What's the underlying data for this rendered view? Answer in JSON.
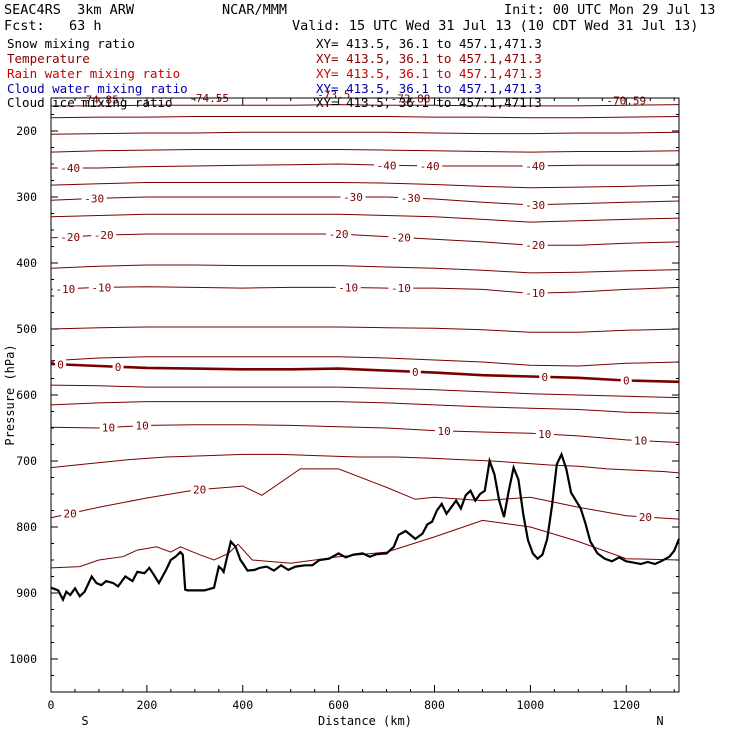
{
  "header": {
    "model": "SEAC4RS  3km ARW",
    "org": "NCAR/MMM",
    "init": "Init: 00 UTC Mon 29 Jul 13",
    "fcst": "Fcst:   63 h",
    "valid": "Valid: 15 UTC Wed 31 Jul 13 (10 CDT Wed 31 Jul 13)"
  },
  "legend": [
    {
      "label": "Snow mixing ratio",
      "range": "XY= 413.5, 36.1 to 457.1,471.3",
      "label_color": "#000000",
      "range_color": "#000000"
    },
    {
      "label": "Temperature",
      "range": "XY= 413.5, 36.1 to 457.1,471.3",
      "label_color": "#8b0000",
      "range_color": "#8b0000"
    },
    {
      "label": "Rain water mixing ratio",
      "range": "XY= 413.5, 36.1 to 457.1,471.3",
      "label_color": "#cc0000",
      "range_color": "#cc0000"
    },
    {
      "label": "Cloud water mixing ratio",
      "range": "XY= 413.5, 36.1 to 457.1,471.3",
      "label_color": "#0000aa",
      "range_color": "#0000aa"
    },
    {
      "label": "Cloud ice mixing ratio",
      "range": "XY= 413.5, 36.1 to 457.1,471.3",
      "label_color": "#000000",
      "range_color": "#000000"
    }
  ],
  "chart_data": {
    "type": "line",
    "title": "",
    "xlabel": "Distance (km)",
    "ylabel": "Pressure (hPa)",
    "xlim": [
      0,
      1310
    ],
    "ylim": [
      1050,
      150
    ],
    "x_ticks": [
      0,
      200,
      400,
      600,
      800,
      1000,
      1200
    ],
    "y_ticks": [
      200,
      300,
      400,
      500,
      600,
      700,
      800,
      900,
      1000
    ],
    "x_end_labels": {
      "left": "S",
      "right": "N"
    },
    "grid": false,
    "colors": {
      "isotherm": "#7a0000",
      "freezing_level": "#7a0000",
      "terrain": "#000000",
      "axes": "#000000"
    },
    "annotations": [
      {
        "text": "-74.85",
        "x": 100,
        "p": 152
      },
      {
        "text": "-74.55",
        "x": 330,
        "p": 150
      },
      {
        "text": "-73.5",
        "x": 590,
        "p": 145
      },
      {
        "text": "-73.88",
        "x": 750,
        "p": 151
      },
      {
        "text": "-70.59",
        "x": 1200,
        "p": 154
      }
    ],
    "isotherms": [
      {
        "temp": -40,
        "x": [
          0,
          100,
          200,
          300,
          400,
          500,
          600,
          700,
          800,
          900,
          1000,
          1100,
          1200,
          1310
        ],
        "p": [
          256,
          256,
          254,
          253,
          252,
          251,
          250,
          252,
          253,
          253,
          253,
          252,
          252,
          252
        ],
        "labels_x": [
          40,
          700,
          790,
          1010
        ]
      },
      {
        "temp": -30,
        "x": [
          0,
          100,
          200,
          300,
          400,
          500,
          600,
          700,
          800,
          900,
          1000,
          1100,
          1200,
          1310
        ],
        "p": [
          305,
          302,
          300,
          300,
          300,
          300,
          300,
          300,
          303,
          308,
          312,
          310,
          308,
          306
        ],
        "labels_x": [
          90,
          630,
          750,
          1010
        ]
      },
      {
        "temp": -20,
        "x": [
          0,
          100,
          200,
          300,
          400,
          500,
          600,
          700,
          800,
          900,
          1000,
          1100,
          1200,
          1310
        ],
        "p": [
          362,
          358,
          356,
          356,
          356,
          356,
          356,
          360,
          364,
          368,
          373,
          373,
          370,
          368
        ],
        "labels_x": [
          40,
          110,
          600,
          730,
          1010
        ]
      },
      {
        "temp": -10,
        "x": [
          0,
          100,
          200,
          300,
          400,
          500,
          600,
          700,
          800,
          900,
          1000,
          1100,
          1200,
          1310
        ],
        "p": [
          440,
          437,
          436,
          437,
          438,
          437,
          437,
          438,
          438,
          440,
          446,
          444,
          440,
          437
        ],
        "labels_x": [
          30,
          105,
          620,
          730,
          1010
        ]
      },
      {
        "temp": 0,
        "x": [
          0,
          100,
          200,
          300,
          400,
          500,
          600,
          700,
          800,
          900,
          1000,
          1100,
          1200,
          1310
        ],
        "p": [
          553,
          556,
          559,
          560,
          561,
          561,
          560,
          563,
          566,
          570,
          572,
          574,
          578,
          580
        ],
        "labels_x": [
          20,
          140,
          760,
          1030,
          1200
        ]
      },
      {
        "temp": 10,
        "x": [
          0,
          100,
          200,
          300,
          400,
          500,
          600,
          700,
          800,
          900,
          1000,
          1100,
          1200,
          1310
        ],
        "p": [
          649,
          650,
          646,
          645,
          645,
          646,
          648,
          650,
          654,
          656,
          658,
          662,
          668,
          672
        ],
        "labels_x": [
          120,
          190,
          820,
          1030,
          1230
        ]
      },
      {
        "temp": 20,
        "x": [
          0,
          100,
          200,
          300,
          400,
          440,
          520,
          600,
          700,
          760,
          800,
          900,
          1000,
          1100,
          1200,
          1310
        ],
        "p": [
          786,
          770,
          756,
          744,
          738,
          752,
          712,
          712,
          740,
          758,
          755,
          760,
          755,
          770,
          783,
          788
        ],
        "labels_x": [
          40,
          310,
          1240
        ]
      }
    ],
    "extra_contours": [
      {
        "x": [
          0,
          80,
          160,
          240,
          320,
          400,
          480,
          560,
          640,
          720,
          800,
          860,
          920,
          980,
          1040,
          1100,
          1160,
          1220,
          1280,
          1310
        ],
        "p": [
          710,
          704,
          698,
          694,
          692,
          690,
          690,
          692,
          694,
          694,
          696,
          698,
          700,
          703,
          706,
          708,
          712,
          714,
          716,
          718
        ]
      },
      {
        "x": [
          0,
          100,
          200,
          300,
          400,
          500,
          600,
          700,
          800,
          900,
          1000,
          1100,
          1200,
          1310
        ],
        "p": [
          615,
          612,
          610,
          610,
          610,
          610,
          610,
          612,
          615,
          618,
          620,
          622,
          626,
          628
        ]
      },
      {
        "x": [
          0,
          100,
          200,
          300,
          400,
          500,
          600,
          700,
          800,
          900,
          1000,
          1100,
          1200,
          1310
        ],
        "p": [
          500,
          498,
          497,
          497,
          497,
          497,
          497,
          498,
          499,
          501,
          505,
          505,
          502,
          500
        ]
      },
      {
        "x": [
          0,
          100,
          200,
          300,
          400,
          500,
          600,
          700,
          800,
          900,
          1000,
          1100,
          1200,
          1310
        ],
        "p": [
          408,
          405,
          403,
          403,
          404,
          404,
          404,
          406,
          408,
          411,
          415,
          414,
          412,
          410
        ]
      },
      {
        "x": [
          0,
          100,
          200,
          300,
          400,
          500,
          600,
          700,
          800,
          900,
          1000,
          1100,
          1200,
          1310
        ],
        "p": [
          330,
          328,
          326,
          326,
          326,
          326,
          326,
          328,
          330,
          334,
          338,
          336,
          334,
          332
        ]
      },
      {
        "x": [
          0,
          100,
          200,
          300,
          400,
          500,
          600,
          700,
          800,
          900,
          1000,
          1100,
          1200,
          1310
        ],
        "p": [
          282,
          280,
          278,
          278,
          278,
          278,
          278,
          279,
          281,
          284,
          286,
          285,
          284,
          282
        ]
      },
      {
        "x": [
          0,
          100,
          200,
          300,
          400,
          500,
          600,
          700,
          800,
          900,
          1000,
          1100,
          1200,
          1310
        ],
        "p": [
          232,
          230,
          229,
          228,
          228,
          228,
          228,
          229,
          230,
          231,
          232,
          231,
          231,
          230
        ]
      },
      {
        "x": [
          0,
          100,
          200,
          300,
          400,
          500,
          600,
          700,
          800,
          900,
          1000,
          1100,
          1200,
          1310
        ],
        "p": [
          205,
          204,
          203,
          203,
          202,
          202,
          202,
          202,
          203,
          204,
          204,
          203,
          203,
          202
        ]
      },
      {
        "x": [
          0,
          100,
          200,
          300,
          400,
          500,
          600,
          700,
          800,
          900,
          1000,
          1100,
          1200,
          1310
        ],
        "p": [
          180,
          179,
          179,
          178,
          178,
          178,
          178,
          178,
          179,
          179,
          180,
          180,
          179,
          178
        ]
      },
      {
        "x": [
          0,
          100,
          200,
          300,
          400,
          500,
          600,
          700,
          800,
          900,
          1000,
          1100,
          1200,
          1310
        ],
        "p": [
          162,
          162,
          161,
          161,
          161,
          161,
          160,
          161,
          161,
          162,
          162,
          162,
          161,
          160
        ]
      },
      {
        "x": [
          0,
          100,
          200,
          300,
          400,
          500,
          600,
          700,
          800,
          900,
          1000,
          1100,
          1200,
          1310
        ],
        "p": [
          548,
          544,
          542,
          542,
          542,
          542,
          542,
          544,
          547,
          550,
          555,
          556,
          552,
          550
        ]
      },
      {
        "x": [
          0,
          100,
          200,
          300,
          400,
          500,
          600,
          700,
          800,
          900,
          1000,
          1100,
          1200,
          1310
        ],
        "p": [
          585,
          586,
          588,
          588,
          588,
          588,
          588,
          590,
          592,
          595,
          598,
          600,
          602,
          604
        ]
      },
      {
        "x": [
          0,
          60,
          100,
          150,
          180,
          220,
          250,
          270,
          290,
          310,
          340,
          370,
          390,
          420,
          500,
          600,
          700,
          800,
          900,
          1000,
          1100,
          1200,
          1310
        ],
        "p": [
          862,
          860,
          850,
          845,
          835,
          830,
          838,
          830,
          836,
          842,
          850,
          840,
          826,
          850,
          855,
          845,
          838,
          815,
          790,
          800,
          822,
          848,
          850
        ]
      }
    ],
    "terrain": {
      "x": [
        0,
        15,
        25,
        32,
        40,
        50,
        60,
        70,
        85,
        95,
        105,
        115,
        130,
        140,
        155,
        170,
        180,
        195,
        205,
        215,
        225,
        240,
        250,
        260,
        270,
        275,
        280,
        285,
        290,
        320,
        340,
        350,
        355,
        360,
        375,
        385,
        395,
        400,
        410,
        425,
        435,
        450,
        465,
        480,
        495,
        510,
        530,
        545,
        560,
        580,
        600,
        615,
        630,
        650,
        665,
        680,
        700,
        715,
        725,
        740,
        760,
        775,
        785,
        795,
        805,
        815,
        825,
        835,
        845,
        855,
        865,
        875,
        885,
        895,
        905,
        915,
        925,
        935,
        945,
        955,
        965,
        975,
        985,
        995,
        1005,
        1015,
        1025,
        1035,
        1045,
        1055,
        1065,
        1075,
        1085,
        1095,
        1105,
        1115,
        1125,
        1140,
        1155,
        1170,
        1185,
        1200,
        1215,
        1230,
        1245,
        1260,
        1275,
        1290,
        1300,
        1310
      ],
      "p": [
        892,
        896,
        910,
        898,
        903,
        893,
        905,
        898,
        875,
        885,
        888,
        882,
        885,
        890,
        875,
        882,
        868,
        870,
        862,
        873,
        885,
        865,
        850,
        845,
        838,
        842,
        895,
        896,
        896,
        896,
        892,
        860,
        863,
        868,
        822,
        830,
        850,
        855,
        866,
        865,
        862,
        860,
        866,
        858,
        865,
        860,
        858,
        858,
        850,
        848,
        840,
        846,
        842,
        840,
        845,
        841,
        840,
        830,
        812,
        806,
        818,
        810,
        796,
        792,
        775,
        765,
        780,
        770,
        760,
        772,
        752,
        745,
        760,
        750,
        745,
        700,
        720,
        760,
        785,
        745,
        710,
        728,
        780,
        820,
        840,
        848,
        842,
        818,
        768,
        705,
        690,
        712,
        748,
        760,
        772,
        795,
        822,
        840,
        848,
        852,
        846,
        852,
        854,
        856,
        853,
        856,
        851,
        845,
        836,
        818
      ]
    }
  }
}
